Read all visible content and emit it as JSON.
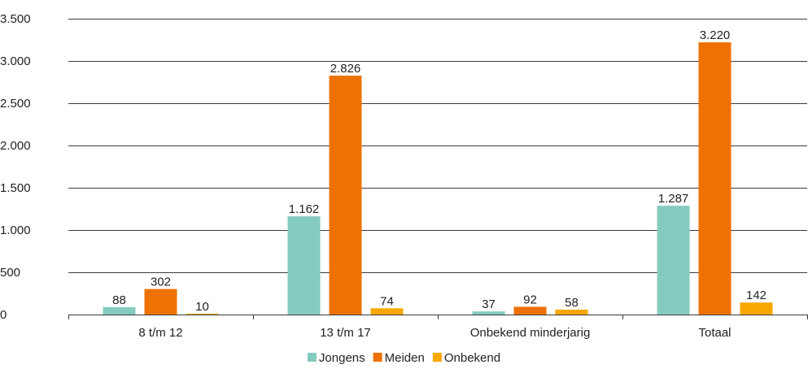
{
  "chart_data": {
    "type": "bar",
    "categories": [
      "8 t/m 12",
      "13 t/m 17",
      "Onbekend minderjarig",
      "Totaal"
    ],
    "series": [
      {
        "name": "Jongens",
        "values": [
          88,
          1162,
          37,
          1287
        ],
        "labels": [
          "88",
          "1.162",
          "37",
          "1.287"
        ],
        "color": "#85cbbf"
      },
      {
        "name": "Meiden",
        "values": [
          302,
          2826,
          92,
          3220
        ],
        "labels": [
          "302",
          "2.826",
          "92",
          "3.220"
        ],
        "color": "#ee7203"
      },
      {
        "name": "Onbekend",
        "values": [
          10,
          74,
          58,
          142
        ],
        "labels": [
          "10",
          "74",
          "58",
          "142"
        ],
        "color": "#f7a800"
      }
    ],
    "ylim": [
      0,
      3500
    ],
    "yticks": [
      0,
      500,
      1000,
      1500,
      2000,
      2500,
      3000,
      3500
    ],
    "ytick_labels": [
      "0",
      "500",
      "1.000",
      "1.500",
      "2.000",
      "2.500",
      "3.000",
      "3.500"
    ],
    "grid": true,
    "legend_position": "bottom-center",
    "title": "",
    "xlabel": "",
    "ylabel": ""
  }
}
